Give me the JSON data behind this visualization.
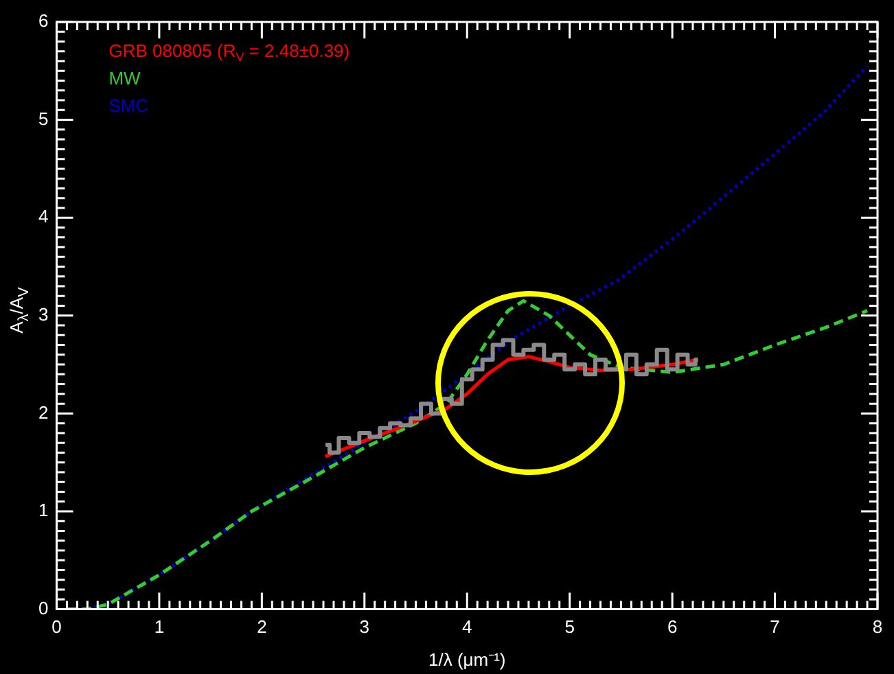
{
  "chart_data": {
    "type": "line",
    "xlabel": "1/λ (μm⁻¹)",
    "ylabel": "A$_{λ}$/A$_{V}$",
    "xlim": [
      0,
      8
    ],
    "xticks": [
      0,
      1,
      2,
      3,
      4,
      5,
      6,
      7,
      8
    ],
    "ylim": [
      0,
      6
    ],
    "yticks": [
      0,
      1,
      2,
      3,
      4,
      5,
      6
    ],
    "grid": false,
    "legend": "top left",
    "marker": "none",
    "series": [
      {
        "type": "step",
        "color": "#8a8a8a",
        "x": [
          2.62,
          2.7,
          2.8,
          2.9,
          3.0,
          3.1,
          3.2,
          3.3,
          3.4,
          3.5,
          3.6,
          3.7,
          3.8,
          3.9,
          4.0,
          4.1,
          4.2,
          4.3,
          4.4,
          4.5,
          4.6,
          4.7,
          4.8,
          4.9,
          5.0,
          5.1,
          5.2,
          5.3,
          5.4,
          5.5,
          5.6,
          5.7,
          5.8,
          5.9,
          6.0,
          6.1,
          6.2,
          6.25
        ],
        "values": [
          1.68,
          1.6,
          1.75,
          1.7,
          1.8,
          1.76,
          1.85,
          1.9,
          1.88,
          1.95,
          2.1,
          2.0,
          2.15,
          2.1,
          2.35,
          2.45,
          2.55,
          2.7,
          2.75,
          2.6,
          2.65,
          2.7,
          2.55,
          2.6,
          2.45,
          2.5,
          2.4,
          2.55,
          2.45,
          2.45,
          2.6,
          2.4,
          2.5,
          2.65,
          2.45,
          2.6,
          2.5,
          2.55
        ]
      },
      {
        "name": "GRB 080805 (R$_{V}$ = 2.48±0.39)",
        "color": "#ff0000",
        "line_style": "solid",
        "x": [
          2.62,
          3.0,
          3.5,
          3.8,
          4.0,
          4.2,
          4.4,
          4.6,
          4.8,
          5.0,
          5.3,
          5.6,
          6.0,
          6.25
        ],
        "values": [
          1.56,
          1.72,
          1.92,
          2.05,
          2.2,
          2.4,
          2.55,
          2.58,
          2.53,
          2.47,
          2.44,
          2.45,
          2.5,
          2.55
        ]
      },
      {
        "name": "MW",
        "color": "#33cc33",
        "line_style": "dashed",
        "x": [
          0.1,
          0.3,
          0.5,
          1.0,
          1.5,
          1.9,
          2.5,
          3.0,
          3.5,
          3.8,
          4.0,
          4.2,
          4.4,
          4.55,
          4.8,
          5.0,
          5.2,
          5.5,
          6.0,
          6.5,
          7.0,
          7.5,
          7.9
        ],
        "values": [
          0.0,
          0.0,
          0.05,
          0.35,
          0.7,
          1.0,
          1.35,
          1.65,
          1.9,
          2.1,
          2.4,
          2.75,
          3.05,
          3.15,
          3.0,
          2.8,
          2.6,
          2.47,
          2.42,
          2.5,
          2.7,
          2.88,
          3.05
        ]
      },
      {
        "name": "SMC",
        "color": "#0000cc",
        "line_style": "dotted",
        "x": [
          0.1,
          0.3,
          0.5,
          1.0,
          1.5,
          1.9,
          2.5,
          3.0,
          3.5,
          4.0,
          4.44,
          5.0,
          5.47,
          6.0,
          6.34,
          7.0,
          7.5,
          7.9
        ],
        "values": [
          0.0,
          0.0,
          0.05,
          0.35,
          0.7,
          1.0,
          1.38,
          1.7,
          2.02,
          2.4,
          2.76,
          3.1,
          3.36,
          3.78,
          4.07,
          4.65,
          5.1,
          5.55
        ]
      }
    ]
  }
}
